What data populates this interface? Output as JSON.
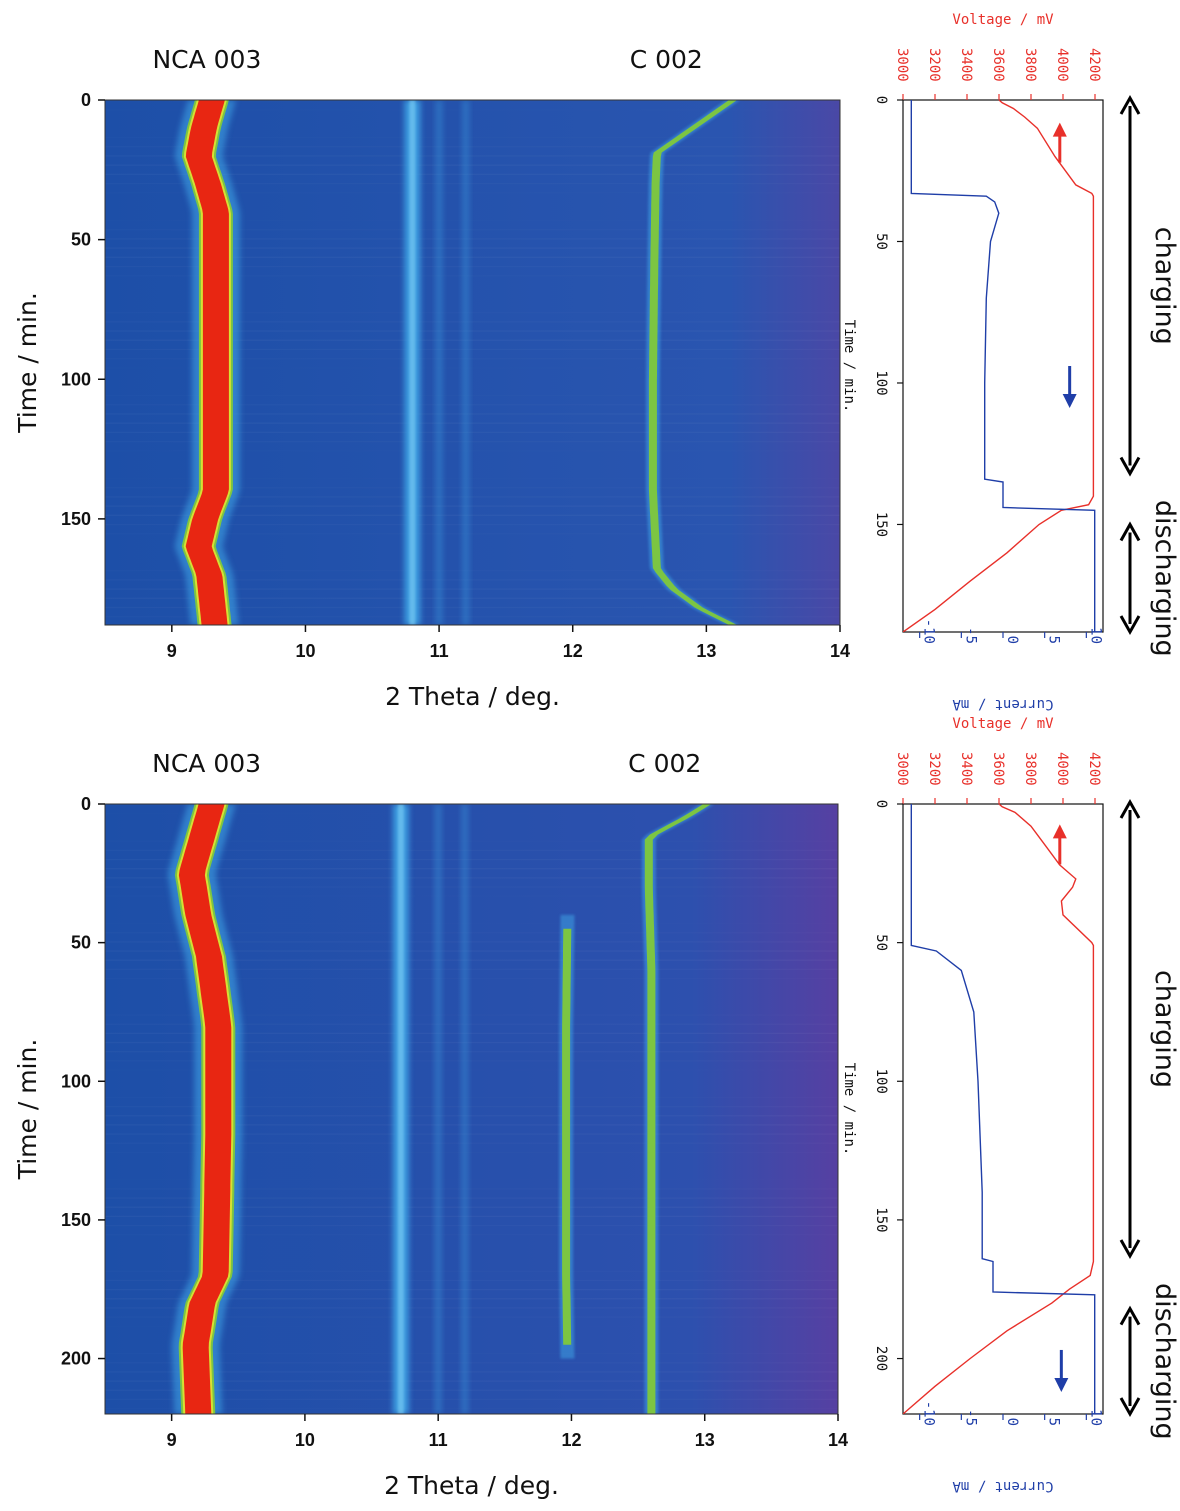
{
  "colors": {
    "heat_bg": "#1d4fa8",
    "heat_bg2": "#2a55b0",
    "band_cyan": "#41a7e8",
    "peak_red": "#e82612",
    "peak_yellow": "#d6e034",
    "peak_green": "#7cc542",
    "voltage": "#e8302a",
    "current": "#1f3ea8",
    "arrow_black": "#000000"
  },
  "chart_data": [
    {
      "type": "heatmap",
      "panel": "top-left",
      "xlabel": "2 Theta / deg.",
      "ylabel": "Time / min.",
      "xlim": [
        8.5,
        14
      ],
      "ylim": [
        0,
        188
      ],
      "y_inverted": true,
      "x_ticks": [
        "9",
        "10",
        "11",
        "12",
        "13",
        "14"
      ],
      "y_ticks": [
        "0",
        "50",
        "100",
        "150"
      ],
      "peak_labels": [
        {
          "text": "NCA 003",
          "x": 9.3
        },
        {
          "text": "C 002",
          "x": 12.7
        }
      ],
      "bands": [
        {
          "x": 10.8,
          "type": "background line"
        },
        {
          "x": 11.0,
          "type": "background line"
        },
        {
          "x": 11.2,
          "type": "background line"
        }
      ],
      "nca_003_peak": {
        "time": [
          0,
          10,
          20,
          30,
          40,
          60,
          100,
          140,
          150,
          160,
          170,
          188
        ],
        "two_theta": [
          9.3,
          9.24,
          9.2,
          9.27,
          9.33,
          9.33,
          9.33,
          9.33,
          9.25,
          9.2,
          9.28,
          9.32
        ]
      },
      "c_002_peak": {
        "time": [
          0,
          10,
          19,
          30,
          60,
          100,
          140,
          168,
          175,
          182,
          188
        ],
        "two_theta": [
          13.2,
          12.9,
          12.63,
          12.62,
          12.61,
          12.6,
          12.6,
          12.63,
          12.75,
          12.95,
          13.2
        ]
      }
    },
    {
      "type": "line",
      "panel": "top-right",
      "orientation": "rotated: time runs downward",
      "time_label": "Time / min.",
      "time_ticks": [
        "0",
        "50",
        "100",
        "150"
      ],
      "time_range": [
        0,
        188
      ],
      "voltage_axis": {
        "label": "Voltage / mV",
        "range": [
          3000,
          4250
        ],
        "ticks": [
          "3000",
          "3200",
          "3400",
          "3600",
          "3800",
          "4000",
          "4200"
        ]
      },
      "current_axis": {
        "label": "Current / mA",
        "range": [
          -12,
          12
        ],
        "ticks": [
          "-10",
          "-5",
          "0",
          "5",
          "10"
        ]
      },
      "series": [
        {
          "name": "Voltage / mV",
          "time": [
            0,
            1,
            3,
            6,
            10,
            20,
            30,
            33,
            34,
            140,
            143,
            145,
            150,
            160,
            170,
            180,
            188
          ],
          "values": [
            3600,
            3620,
            3690,
            3760,
            3840,
            3950,
            4080,
            4180,
            4190,
            4190,
            4160,
            3990,
            3850,
            3650,
            3420,
            3200,
            3000
          ]
        },
        {
          "name": "Current / mA",
          "time": [
            0,
            33,
            34,
            36,
            40,
            50,
            70,
            100,
            134,
            135,
            144,
            145,
            188
          ],
          "values": [
            -11,
            -11,
            -2,
            -1,
            -0.5,
            -1.5,
            -2,
            -2.2,
            -2.2,
            0,
            0,
            11,
            11
          ]
        }
      ],
      "annotations": [
        {
          "text": "charging",
          "time_range": [
            0,
            132
          ]
        },
        {
          "text": "discharging",
          "time_range": [
            150,
            188
          ]
        }
      ]
    },
    {
      "type": "heatmap",
      "panel": "bottom-left",
      "xlabel": "2 Theta / deg.",
      "ylabel": "Time / min.",
      "xlim": [
        8.5,
        14
      ],
      "ylim": [
        0,
        220
      ],
      "y_inverted": true,
      "x_ticks": [
        "9",
        "10",
        "11",
        "12",
        "13",
        "14"
      ],
      "y_ticks": [
        "0",
        "50",
        "100",
        "150",
        "200"
      ],
      "peak_labels": [
        {
          "text": "NCA 003",
          "x": 9.3
        },
        {
          "text": "C 002",
          "x": 12.7
        }
      ],
      "bands": [
        {
          "x": 10.72,
          "type": "background line"
        },
        {
          "x": 11.0,
          "type": "background line"
        },
        {
          "x": 11.2,
          "type": "background line"
        }
      ],
      "nca_003_peak": {
        "time": [
          0,
          10,
          25,
          40,
          55,
          80,
          120,
          170,
          180,
          195,
          220
        ],
        "two_theta": [
          9.3,
          9.24,
          9.15,
          9.2,
          9.28,
          9.35,
          9.35,
          9.33,
          9.23,
          9.18,
          9.2
        ]
      },
      "c_002_peak": {
        "time": [
          0,
          5,
          12,
          30,
          60,
          100,
          150,
          220
        ],
        "two_theta": [
          13.02,
          12.85,
          12.58,
          12.58,
          12.6,
          12.6,
          12.6,
          12.6
        ]
      },
      "li_c12_peak": {
        "time": [
          40,
          80,
          120,
          170,
          200
        ],
        "two_theta": [
          11.97,
          11.96,
          11.96,
          11.96,
          11.97
        ]
      }
    },
    {
      "type": "line",
      "panel": "bottom-right",
      "orientation": "rotated: time runs downward",
      "time_label": "Time / min.",
      "time_ticks": [
        "0",
        "50",
        "100",
        "150",
        "200"
      ],
      "time_range": [
        0,
        220
      ],
      "voltage_axis": {
        "label": "Voltage / mV",
        "range": [
          3000,
          4250
        ],
        "ticks": [
          "3000",
          "3200",
          "3400",
          "3600",
          "3800",
          "4000",
          "4200"
        ]
      },
      "current_axis": {
        "label": "Current / mA",
        "range": [
          -12,
          12
        ],
        "ticks": [
          "-10",
          "-5",
          "0",
          "5",
          "10"
        ]
      },
      "series": [
        {
          "name": "Voltage / mV",
          "time": [
            0,
            1,
            3,
            8,
            15,
            22,
            27,
            30,
            35,
            40,
            50,
            51,
            165,
            170,
            175,
            180,
            190,
            200,
            210,
            220
          ],
          "values": [
            3600,
            3620,
            3700,
            3800,
            3890,
            3980,
            4080,
            4060,
            3990,
            4000,
            4180,
            4190,
            4190,
            4170,
            4040,
            3930,
            3650,
            3420,
            3200,
            3000
          ]
        },
        {
          "name": "Current / mA",
          "time": [
            0,
            51,
            53,
            60,
            75,
            100,
            140,
            164,
            165,
            176,
            177,
            220
          ],
          "values": [
            -11,
            -11,
            -8,
            -5,
            -3.5,
            -3,
            -2.5,
            -2.5,
            -1.2,
            -1.2,
            11,
            11
          ]
        }
      ],
      "annotations": [
        {
          "text": "charging",
          "time_range": [
            0,
            163
          ]
        },
        {
          "text": "discharging",
          "time_range": [
            182,
            220
          ]
        }
      ]
    }
  ]
}
